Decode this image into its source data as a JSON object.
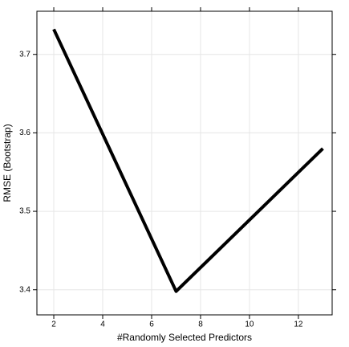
{
  "chart_data": {
    "type": "line",
    "x_label": "#Randomly Selected Predictors",
    "y_label": "RMSE (Bootstrap)",
    "x": [
      2,
      7,
      13
    ],
    "series": [
      {
        "color": "#000000",
        "values": [
          3.732,
          3.398,
          3.58
        ]
      }
    ],
    "xlim": [
      1.31,
      13.38
    ],
    "xticks": [
      2,
      4,
      6,
      8,
      10,
      12
    ],
    "ylim": [
      3.368,
      3.755
    ],
    "yticks": [
      3.4,
      3.5,
      3.6,
      3.7
    ],
    "grid": true
  }
}
